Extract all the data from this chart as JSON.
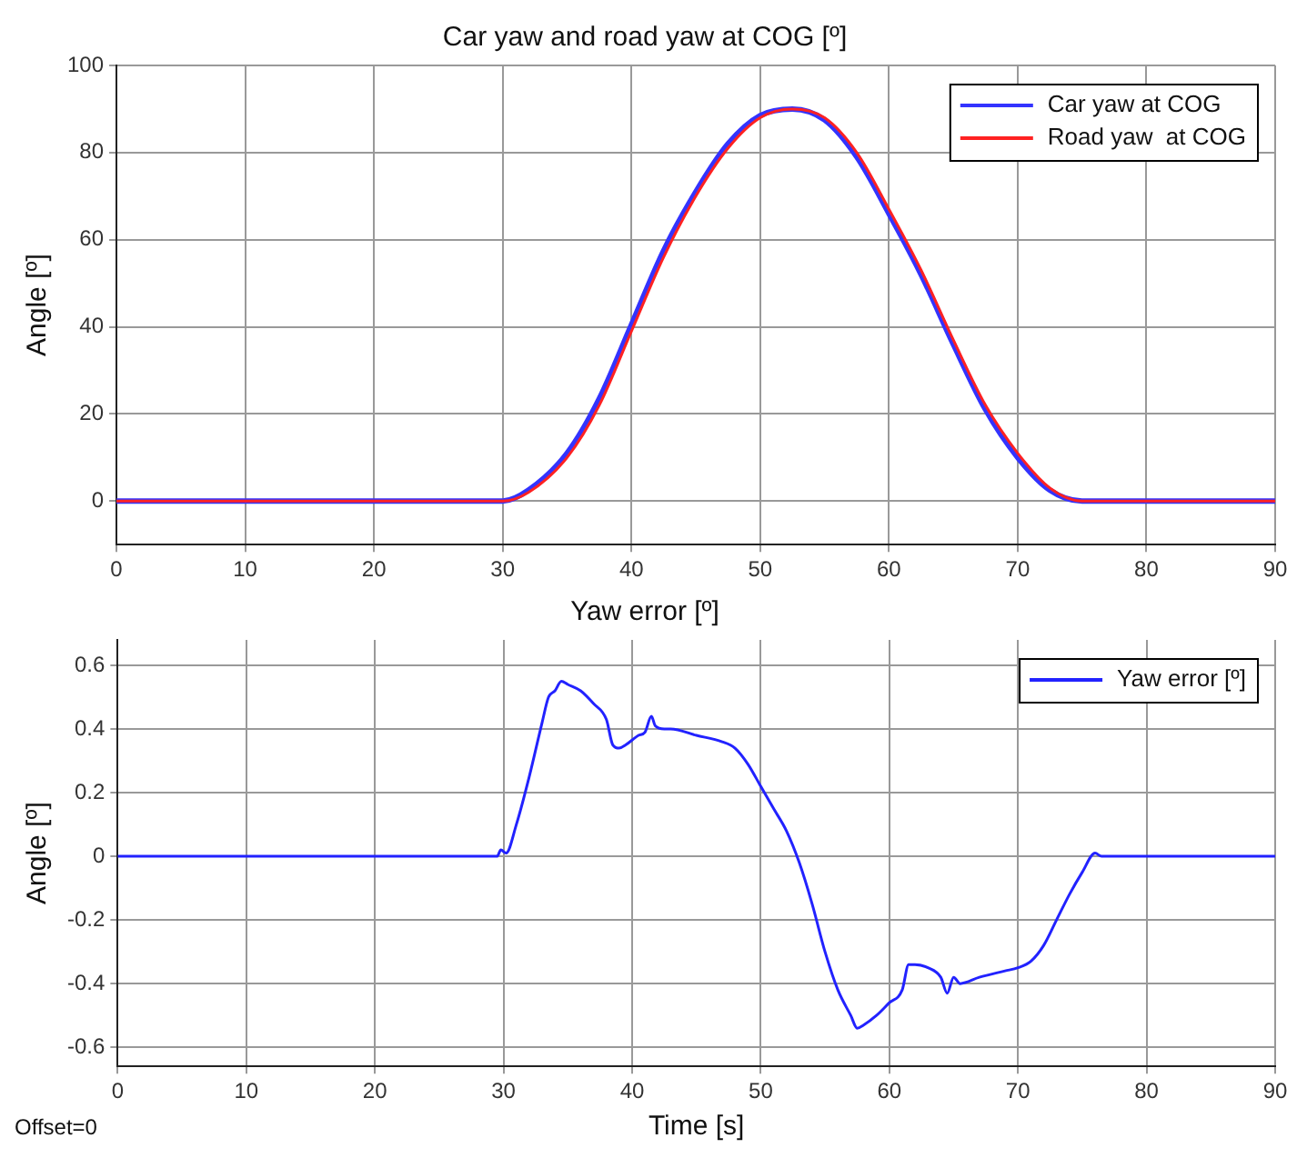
{
  "chart_data": [
    {
      "type": "line",
      "title": "Car yaw and road yaw at COG [º]",
      "ylabel": "Angle [º]",
      "xlim": [
        0,
        90
      ],
      "xticks": [
        0,
        10,
        20,
        30,
        40,
        50,
        60,
        70,
        80,
        90
      ],
      "ylim": [
        -10,
        100
      ],
      "yticks": [
        0,
        20,
        40,
        60,
        80,
        100
      ],
      "grid": true,
      "legend": "top right",
      "marker": "none",
      "line_style": "solid",
      "x": [
        0,
        30,
        32,
        35,
        37.5,
        40,
        42.5,
        45,
        47.5,
        50,
        52.5,
        55,
        57.5,
        60,
        62.5,
        65,
        67.5,
        70,
        72.5,
        75,
        90
      ],
      "series": [
        {
          "name": "Car yaw at COG",
          "color": "#3333ff",
          "values": [
            0,
            0,
            2.5,
            11,
            23.5,
            40.5,
            57.5,
            71,
            82,
            88.5,
            90,
            87.5,
            79,
            66,
            52,
            36,
            21,
            10,
            2.5,
            0,
            0
          ]
        },
        {
          "name": "Road yaw  at COG",
          "color": "#ff2222",
          "values": [
            0,
            0,
            2,
            10,
            22,
            39,
            56,
            70,
            81,
            88,
            90,
            88,
            80,
            67,
            53,
            37,
            22,
            11,
            3,
            0,
            0
          ]
        }
      ]
    },
    {
      "type": "line",
      "title": "Yaw error [º]",
      "xlabel": "Time [s]",
      "ylabel": "Angle [º]",
      "xlim": [
        0,
        90
      ],
      "xticks": [
        0,
        10,
        20,
        30,
        40,
        50,
        60,
        70,
        80,
        90
      ],
      "ylim": [
        -0.66,
        0.68
      ],
      "yticks": [
        -0.6,
        -0.4,
        -0.2,
        0,
        0.2,
        0.4,
        0.6
      ],
      "grid": true,
      "legend": "top right",
      "marker": "none",
      "line_style": "solid",
      "annotations": [
        "Offset=0"
      ],
      "x": [
        0,
        29.5,
        29.8,
        30.2,
        31,
        32,
        33,
        33.5,
        34,
        34.5,
        35,
        36,
        37,
        38,
        38.5,
        39,
        39.5,
        40.5,
        41,
        41.5,
        41.8,
        42.5,
        43,
        45,
        47,
        48,
        49,
        50,
        51,
        52,
        53,
        54,
        55,
        56,
        57,
        57.5,
        58,
        59,
        60,
        61,
        61.5,
        62,
        63,
        64,
        64.5,
        65,
        65.5,
        67,
        69,
        70,
        71,
        72,
        73,
        74,
        75,
        76,
        76.5,
        77,
        90
      ],
      "series": [
        {
          "name": "Yaw error [º]",
          "color": "#2222ff",
          "values": [
            0,
            0,
            0.02,
            0.01,
            0.1,
            0.25,
            0.42,
            0.5,
            0.52,
            0.55,
            0.54,
            0.52,
            0.48,
            0.43,
            0.35,
            0.34,
            0.35,
            0.38,
            0.39,
            0.44,
            0.41,
            0.4,
            0.4,
            0.38,
            0.36,
            0.34,
            0.29,
            0.22,
            0.15,
            0.08,
            -0.02,
            -0.15,
            -0.3,
            -0.42,
            -0.5,
            -0.54,
            -0.53,
            -0.5,
            -0.46,
            -0.42,
            -0.34,
            -0.34,
            -0.35,
            -0.38,
            -0.43,
            -0.38,
            -0.4,
            -0.38,
            -0.36,
            -0.35,
            -0.33,
            -0.28,
            -0.2,
            -0.12,
            -0.05,
            0.01,
            0,
            0,
            0
          ]
        }
      ]
    }
  ]
}
